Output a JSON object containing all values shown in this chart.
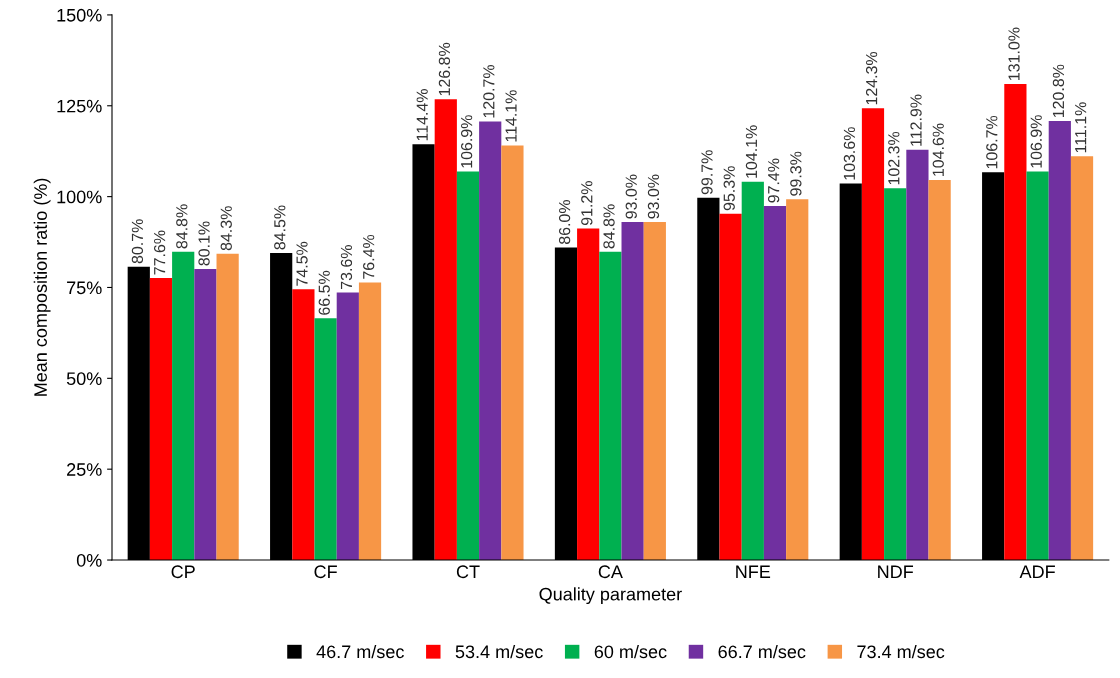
{
  "chart_data": {
    "type": "bar",
    "xlabel": "Quality parameter",
    "ylabel": "Mean composition ratio (%)",
    "categories": [
      "CP",
      "CF",
      "CT",
      "CA",
      "NFE",
      "NDF",
      "ADF"
    ],
    "series": [
      {
        "name": "46.7 m/sec",
        "color": "#000000",
        "values": [
          80.7,
          84.5,
          114.4,
          86.0,
          99.7,
          103.6,
          106.7
        ],
        "value_labels": [
          "80.7%",
          "84.5%",
          "114.4%",
          "86.0%",
          "99.7%",
          "103.6%",
          "106.7%"
        ]
      },
      {
        "name": "53.4 m/sec",
        "color": "#ff0000",
        "values": [
          77.6,
          74.5,
          126.8,
          91.2,
          95.3,
          124.3,
          131.0
        ],
        "value_labels": [
          "77.6%",
          "74.5%",
          "126.8%",
          "91.2%",
          "95.3%",
          "124.3%",
          "131.0%"
        ]
      },
      {
        "name": "60 m/sec",
        "color": "#00b050",
        "values": [
          84.8,
          66.5,
          106.9,
          84.8,
          104.1,
          102.3,
          106.9
        ],
        "value_labels": [
          "84.8%",
          "66.5%",
          "106.9%",
          "84.8%",
          "104.1%",
          "102.3%",
          "106.9%"
        ]
      },
      {
        "name": "66.7 m/sec",
        "color": "#7030a0",
        "values": [
          80.1,
          73.6,
          120.7,
          93.0,
          97.4,
          112.9,
          120.8
        ],
        "value_labels": [
          "80.1%",
          "73.6%",
          "120.7%",
          "93.0%",
          "97.4%",
          "112.9%",
          "120.8%"
        ]
      },
      {
        "name": "73.4 m/sec",
        "color": "#f79646",
        "values": [
          84.3,
          76.4,
          114.1,
          93.0,
          99.3,
          104.6,
          111.1
        ],
        "value_labels": [
          "84.3%",
          "76.4%",
          "114.1%",
          "93.0%",
          "99.3%",
          "104.6%",
          "111.1%"
        ]
      }
    ],
    "ylim": [
      0,
      150
    ],
    "yticks": [
      {
        "value": 0,
        "label": "0%"
      },
      {
        "value": 25,
        "label": "25%"
      },
      {
        "value": 50,
        "label": "50%"
      },
      {
        "value": 75,
        "label": "75%"
      },
      {
        "value": 100,
        "label": "100%"
      },
      {
        "value": 125,
        "label": "125%"
      },
      {
        "value": 150,
        "label": "150%"
      }
    ],
    "grid": false,
    "legend": "bottom"
  }
}
